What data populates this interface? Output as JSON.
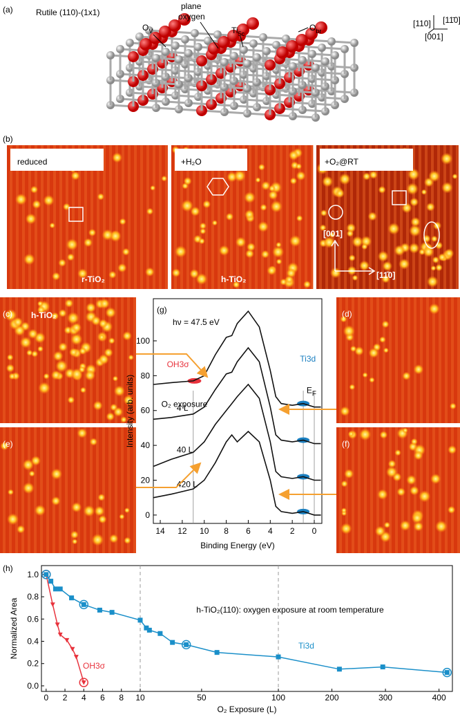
{
  "panel_a": {
    "label": "(a)",
    "title": "Rutile (110)-(1x1)",
    "ov": "O",
    "ov_sub": "V",
    "plane_1": "plane",
    "plane_2": "oxygen",
    "ti": "Ti",
    "ti_sub": "5c",
    "obr": "O",
    "obr_sub": "br",
    "dir_110": "[110]",
    "dir_1m10": "[11̄0]",
    "dir_001": "[001]"
  },
  "panel_b": {
    "label": "(b)",
    "reduced": "reduced",
    "water": "+H₂O",
    "oxygen": "+O₂@RT",
    "r_tio2": "r-TiO₂",
    "h_tio2": "h-TiO₂",
    "dir_001": "[001]",
    "dir_1m10": "[11̄0]"
  },
  "panel_c": {
    "label": "(c)",
    "text": "h-TiO₂"
  },
  "panel_d": {
    "label": "(d)"
  },
  "panel_e": {
    "label": "(e)"
  },
  "panel_f": {
    "label": "(f)"
  },
  "panel_g": {
    "label": "(g)",
    "type": "line",
    "annotation": "hν = 47.5 eV",
    "ylabel": "Intensity  (arb. units)",
    "xlabel": "Binding Energy  (eV)",
    "oh_label": "OH3σ",
    "ti_label": "Ti3d",
    "fermi": "E",
    "fermi_sub": "F",
    "exposure_label": "O₂ exposure",
    "x": [
      14.6,
      13,
      11,
      10,
      9,
      8,
      7.5,
      7,
      6,
      5,
      4,
      3.5,
      3,
      2,
      1,
      0,
      -0.6
    ],
    "xlim": [
      14.63,
      -0.69
    ],
    "xticks": [
      14,
      12,
      10,
      8,
      6,
      4,
      2,
      0
    ],
    "ylim": [
      -4.8,
      124.2
    ],
    "yticks": [
      0,
      20,
      40,
      60,
      80,
      100
    ],
    "color": "#111111",
    "series": [
      {
        "values": [
          75,
          76,
          77,
          80,
          92,
          102,
          103,
          110,
          117,
          108,
          83,
          68,
          64,
          63,
          64,
          62,
          62
        ]
      },
      {
        "name": "4 L",
        "values": [
          55,
          56,
          58,
          62,
          72,
          81,
          82,
          88,
          96,
          88,
          62,
          46,
          43,
          42,
          43,
          41,
          41
        ]
      },
      {
        "name": "40 L",
        "values": [
          28,
          32,
          36,
          42,
          52,
          60,
          64,
          68,
          75,
          67,
          42,
          25,
          22,
          21,
          22,
          20,
          20
        ]
      },
      {
        "name": "420 L",
        "values": [
          10,
          12,
          15,
          20,
          30,
          42,
          46,
          42,
          48,
          42,
          20,
          5,
          2,
          1,
          2,
          0,
          0
        ]
      }
    ]
  },
  "panel_h": {
    "label": "(h)",
    "type": "line",
    "title": "h-TiO₂(110): oxygen exposure  at room temperature",
    "ylabel": "Normalized Area",
    "xlabel": "O₂ Exposure  (L)",
    "xlim": [
      -0.5,
      425
    ],
    "xbreaks": [
      10,
      100
    ],
    "xticks": [
      0,
      2,
      4,
      6,
      8,
      10,
      50,
      100,
      200,
      300,
      400
    ],
    "ylim": [
      -0.05,
      1.08
    ],
    "yticks": [
      {
        "value": 0,
        "label": "0.0"
      },
      0.2,
      0.4,
      0.6,
      0.8,
      {
        "value": 1,
        "label": "1.0"
      }
    ],
    "series": [
      {
        "name": "OH3σ",
        "color": "#e8323c",
        "x": [
          0,
          0.7,
          1.2,
          1.5,
          2.2,
          2.8,
          3.2,
          4
        ],
        "values": [
          1.0,
          0.73,
          0.55,
          0.46,
          0.41,
          0.33,
          0.26,
          0.03
        ]
      },
      {
        "name": "Ti3d",
        "color": "#1a8fc9",
        "x": [
          0,
          0.5,
          1,
          1.5,
          2.7,
          4,
          5.7,
          7,
          10,
          14,
          16,
          23,
          31,
          40,
          60,
          100,
          214,
          295,
          415
        ],
        "values": [
          1.0,
          0.94,
          0.87,
          0.87,
          0.79,
          0.73,
          0.68,
          0.66,
          0.59,
          0.52,
          0.5,
          0.47,
          0.39,
          0.37,
          0.3,
          0.26,
          0.15,
          0.17,
          0.12
        ]
      }
    ]
  }
}
